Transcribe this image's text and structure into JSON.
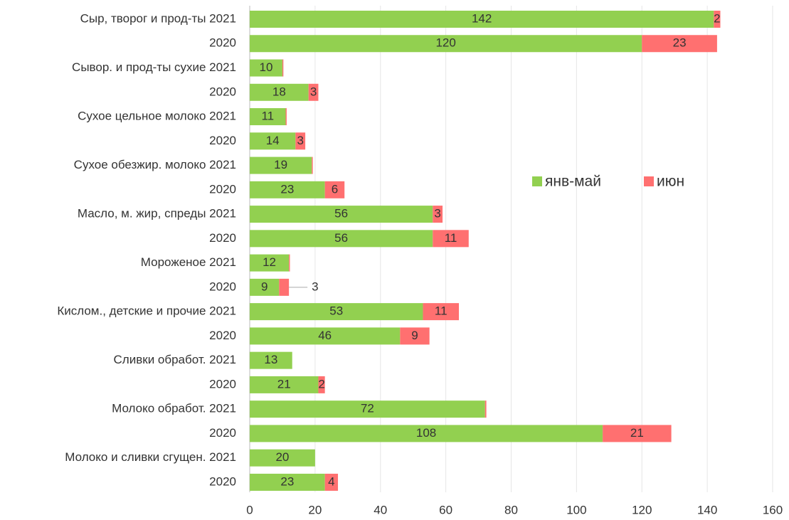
{
  "chart_data": {
    "type": "bar",
    "orientation": "horizontal",
    "stacked": true,
    "categories": [
      "Сыр, творог и прод-ты 2021",
      "2020",
      "Сывор. и прод-ты сухие 2021",
      "2020",
      "Сухое цельное молоко 2021",
      "2020",
      "Сухое обезжир. молоко 2021",
      "2020",
      "Масло, м. жир, спреды 2021",
      "2020",
      "Мороженое 2021",
      "2020",
      "Кислом., детские и прочие 2021",
      "2020",
      "Сливки обработ. 2021",
      "2020",
      "Молоко обработ. 2021",
      "2020",
      "Молоко и сливки сгущен. 2021",
      "2020"
    ],
    "series": [
      {
        "name": "янв-май",
        "color": "#92d050",
        "values": [
          142,
          120,
          10,
          18,
          11,
          14,
          19,
          23,
          56,
          56,
          12,
          9,
          53,
          46,
          13,
          21,
          72,
          108,
          20,
          23
        ]
      },
      {
        "name": "июн",
        "color": "#ff7070",
        "values": [
          2,
          23,
          0.3,
          3,
          0.3,
          3,
          0.3,
          6,
          3,
          11,
          0.3,
          3,
          11,
          9,
          0,
          2,
          0.4,
          21,
          0,
          4
        ],
        "value_labels": [
          "2",
          "23",
          null,
          "3",
          null,
          "3",
          null,
          "6",
          "3",
          "11",
          null,
          "3",
          "11",
          "9",
          null,
          "2",
          null,
          "21",
          null,
          "4"
        ]
      }
    ],
    "xlim": [
      0,
      160
    ],
    "xticks": [
      0,
      20,
      40,
      60,
      80,
      100,
      120,
      140,
      160
    ],
    "grid": true,
    "legend": "right"
  }
}
